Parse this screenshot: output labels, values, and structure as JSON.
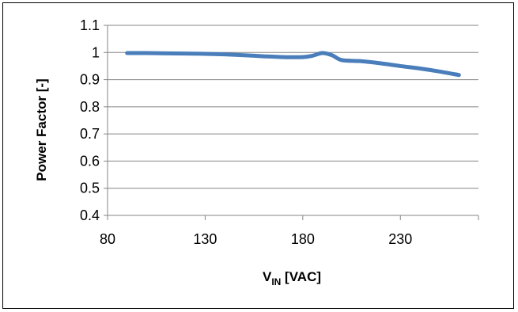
{
  "chart_data": {
    "type": "line",
    "title": "",
    "xlabel_main": "V",
    "xlabel_sub": "IN",
    "xlabel_unit": " [VAC]",
    "ylabel": "Power Factor [-]",
    "xlim": [
      80,
      270
    ],
    "ylim": [
      0.4,
      1.1
    ],
    "xticks": [
      80,
      130,
      180,
      230
    ],
    "yticks": [
      0.4,
      0.5,
      0.6,
      0.7,
      0.8,
      0.9,
      1,
      1.1
    ],
    "xtick_labels": [
      "80",
      "130",
      "180",
      "230"
    ],
    "ytick_labels": [
      "0.4",
      "0.5",
      "0.6",
      "0.7",
      "0.8",
      "0.9",
      "1",
      "1.1"
    ],
    "grid": "horizontal",
    "series_color": "#4a7ebb",
    "series": [
      {
        "x": [
          90,
          100,
          110,
          120,
          130,
          140,
          150,
          160,
          170,
          180,
          185,
          190,
          195,
          200,
          210,
          220,
          230,
          240,
          250,
          260
        ],
        "y": [
          0.998,
          0.998,
          0.997,
          0.996,
          0.995,
          0.993,
          0.99,
          0.986,
          0.983,
          0.983,
          0.988,
          0.998,
          0.99,
          0.972,
          0.968,
          0.96,
          0.95,
          0.941,
          0.93,
          0.917
        ]
      }
    ]
  }
}
